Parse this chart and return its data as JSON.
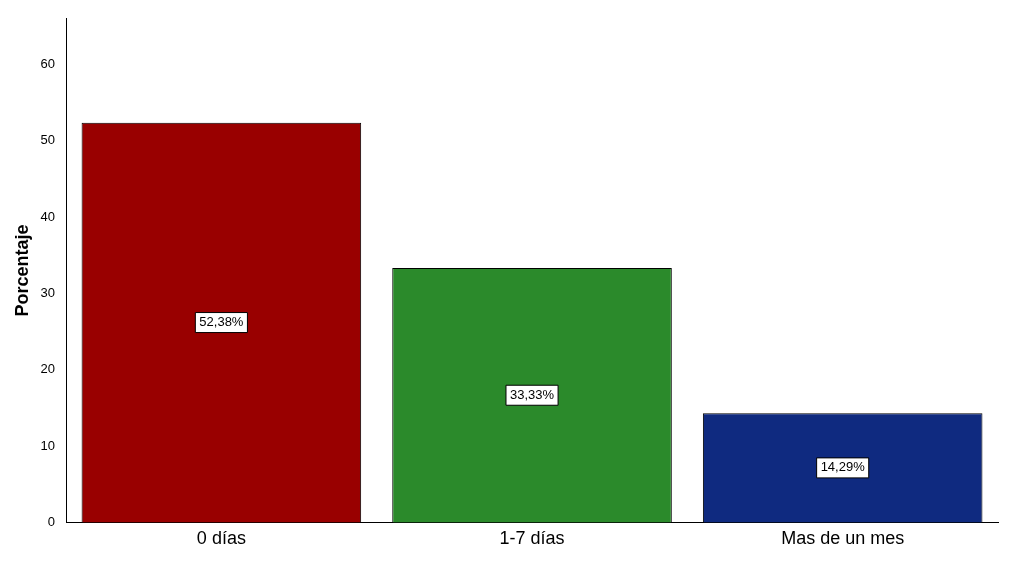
{
  "chart_data": {
    "type": "bar",
    "ylabel": "Porcentaje",
    "categories": [
      "0 días",
      "1-7 días",
      "Mas de un mes"
    ],
    "values": [
      52.38,
      33.33,
      14.29
    ],
    "value_labels": [
      "52,38%",
      "33,33%",
      "14,29%"
    ],
    "colors": [
      "#990000",
      "#2b8a2b",
      "#0f2a80"
    ],
    "ylim": [
      0,
      66
    ],
    "yticks": [
      0,
      10,
      20,
      30,
      40,
      50,
      60
    ],
    "grid": false,
    "legend": false
  }
}
